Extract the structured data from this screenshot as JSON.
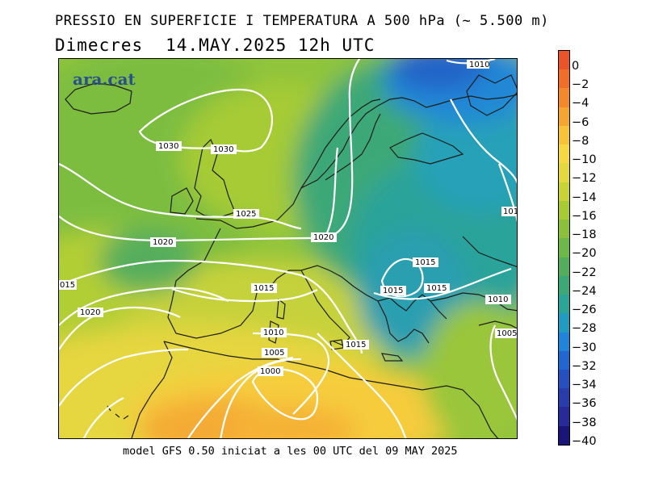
{
  "header": {
    "title": "PRESSIO EN SUPERFICIE I TEMPERATURA A 500 hPa (~ 5.500 m)",
    "day": "Dimecres",
    "datetime": "14.MAY.2025 12h UTC"
  },
  "logo": {
    "text": "ara.cat"
  },
  "footer": {
    "text": "model GFS 0.50 iniciat a les 00 UTC del 09 MAY 2025"
  },
  "colorbar": {
    "labels": [
      "0",
      "−2",
      "−4",
      "−6",
      "−8",
      "−10",
      "−12",
      "−14",
      "−16",
      "−18",
      "−20",
      "−22",
      "−24",
      "−26",
      "−28",
      "−30",
      "−32",
      "−34",
      "−36",
      "−38",
      "−40"
    ],
    "colors": [
      "#e8552a",
      "#ee6e2a",
      "#f28a2d",
      "#f5a532",
      "#f7c33a",
      "#f6d844",
      "#e4d840",
      "#c8d338",
      "#a8ca34",
      "#8cc03a",
      "#6db848",
      "#54ad5c",
      "#3ea777",
      "#2ca596",
      "#219cc0",
      "#2085d8",
      "#2267d0",
      "#2650be",
      "#283caa",
      "#262b95",
      "#1a1577"
    ]
  },
  "isobars": [
    {
      "label": "1010"
    },
    {
      "label": "1030"
    },
    {
      "label": "1030"
    },
    {
      "label": "1025"
    },
    {
      "label": "1020"
    },
    {
      "label": "1020"
    },
    {
      "label": "101"
    },
    {
      "label": "1015"
    },
    {
      "label": "015"
    },
    {
      "label": "1015"
    },
    {
      "label": "1015"
    },
    {
      "label": "1015"
    },
    {
      "label": "1010"
    },
    {
      "label": "1020"
    },
    {
      "label": "1010"
    },
    {
      "label": "1005"
    },
    {
      "label": "1015"
    },
    {
      "label": "1005"
    },
    {
      "label": "1000"
    }
  ]
}
